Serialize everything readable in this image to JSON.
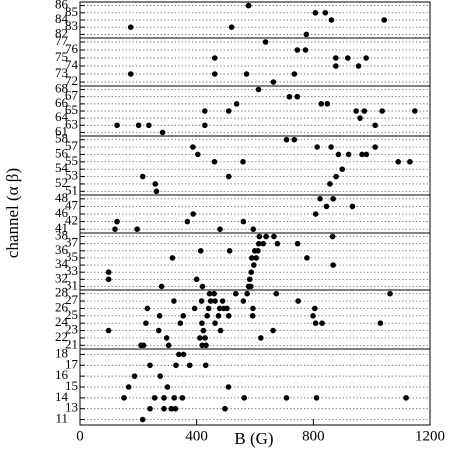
{
  "chart_data": {
    "type": "scatter",
    "x_label": "B (G)",
    "y_label": "channel (α β)",
    "xlim": [
      0,
      1200
    ],
    "xticks": [
      0,
      400,
      800,
      1200
    ],
    "color": "#000000",
    "panels": [
      {
        "rows": [
          {
            "label": "86",
            "x": [
              578
            ]
          },
          {
            "label": "85",
            "x": [
              807,
              841
            ]
          },
          {
            "label": "84",
            "x": [
              862,
              1043
            ]
          },
          {
            "label": "83",
            "x": [
              174,
              520
            ]
          },
          {
            "label": "82",
            "x": [
              776
            ]
          }
        ]
      },
      {
        "rows": [
          {
            "label": "77",
            "x": [
              636
            ]
          },
          {
            "label": "76",
            "x": [
              745,
              773
            ]
          },
          {
            "label": "75",
            "x": [
              462,
              877,
              918,
              981
            ]
          },
          {
            "label": "74",
            "x": [
              877,
              955
            ]
          },
          {
            "label": "73",
            "x": [
              174,
              462,
              571,
              735
            ]
          },
          {
            "label": "72",
            "x": [
              663
            ]
          }
        ]
      },
      {
        "rows": [
          {
            "label": "68",
            "x": [
              612
            ]
          },
          {
            "label": "67",
            "x": [
              718,
              745
            ]
          },
          {
            "label": "66",
            "x": [
              537,
              827,
              848
            ]
          },
          {
            "label": "65",
            "x": [
              428,
              510,
              947,
              975,
              1036,
              1148
            ]
          },
          {
            "label": "64",
            "x": [
              960
            ]
          },
          {
            "label": "63",
            "x": [
              127,
              201,
              236,
              428,
              1012
            ]
          },
          {
            "label": "61",
            "x": [
              283
            ]
          }
        ]
      },
      {
        "rows": [
          {
            "label": "58",
            "x": [
              708,
              735
            ]
          },
          {
            "label": "57",
            "x": [
              387,
              813,
              861,
              1012
            ]
          },
          {
            "label": "56",
            "x": [
              404,
              886,
              921,
              967,
              982
            ]
          },
          {
            "label": "55",
            "x": [
              461,
              559,
              1091,
              1131
            ]
          },
          {
            "label": "54",
            "x": [
              899
            ]
          },
          {
            "label": "53",
            "x": [
              215,
              510,
              878
            ]
          },
          {
            "label": "52",
            "x": [
              258,
              857
            ]
          },
          {
            "label": "51",
            "x": [
              262
            ]
          }
        ]
      },
      {
        "rows": [
          {
            "label": "48",
            "x": [
              823,
              868
            ]
          },
          {
            "label": "47",
            "x": [
              845,
              934
            ]
          },
          {
            "label": "46",
            "x": [
              388,
              808
            ]
          },
          {
            "label": "42",
            "x": [
              127,
              368,
              560
            ]
          },
          {
            "label": "41",
            "x": [
              120,
              196,
              480,
              594
            ]
          }
        ]
      },
      {
        "rows": [
          {
            "label": "38",
            "x": [
              615,
              638,
              665,
              866
            ]
          },
          {
            "label": "37",
            "x": [
              613,
              628,
              677,
              746
            ]
          },
          {
            "label": "36",
            "x": [
              414,
              513,
              599,
              610
            ]
          },
          {
            "label": "35",
            "x": [
              317,
              589,
              604,
              778
            ]
          },
          {
            "label": "34",
            "x": [
              596,
              868
            ]
          },
          {
            "label": "33",
            "x": [
              98,
              587
            ]
          },
          {
            "label": "32",
            "x": [
              98,
              400,
              582
            ]
          },
          {
            "label": "31",
            "x": [
              280,
              420,
              578,
              586
            ]
          }
        ]
      },
      {
        "rows": [
          {
            "label": "28",
            "x": [
              444,
              460,
              534,
              573,
              673,
              1063
            ]
          },
          {
            "label": "27",
            "x": [
              322,
              417,
              448,
              463,
              489,
              560,
              748
            ]
          },
          {
            "label": "26",
            "x": [
              231,
              393,
              441,
              479,
              493,
              504,
              593,
              805
            ]
          },
          {
            "label": "25",
            "x": [
              273,
              354,
              436,
              475,
              510,
              592,
              799
            ]
          },
          {
            "label": "24",
            "x": [
              226,
              344,
              418,
              463,
              808,
              830,
              1030
            ]
          },
          {
            "label": "23",
            "x": [
              98,
              270,
              423,
              482,
              662
            ]
          },
          {
            "label": "22",
            "x": [
              297,
              411,
              429,
              620
            ]
          },
          {
            "label": "21",
            "x": [
              209,
              218,
              304,
              419,
              432
            ]
          }
        ]
      },
      {
        "rows": [
          {
            "label": "18",
            "x": [
              339,
              355
            ]
          },
          {
            "label": "17",
            "x": [
              240,
              329,
              376,
              431
            ]
          },
          {
            "label": "16",
            "x": [
              187,
              275
            ]
          },
          {
            "label": "15",
            "x": [
              167,
              300,
              509
            ]
          },
          {
            "label": "14",
            "x": [
              151,
              256,
              288,
              323,
              351,
              563,
              708,
              811,
              1118
            ]
          },
          {
            "label": "13",
            "x": [
              240,
              288,
              313,
              327,
              497
            ]
          },
          {
            "label": "11",
            "x": [
              215
            ]
          }
        ]
      }
    ]
  }
}
